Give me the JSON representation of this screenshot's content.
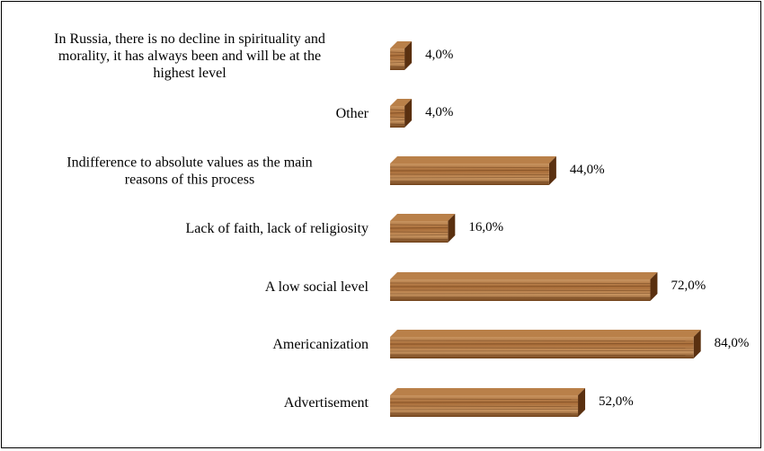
{
  "colors": {
    "bar_light": "#c89460",
    "bar_mid": "#a86c38",
    "bar_dark": "#6e3f18",
    "bar_top": "#b98049",
    "bar_side": "#5a3010",
    "grain": "#4a2608",
    "frame": "#000000",
    "text": "#000000"
  },
  "chart_data": {
    "type": "bar",
    "orientation": "horizontal",
    "style": "3d-wood-texture",
    "xlim": [
      0,
      100
    ],
    "grid": false,
    "legend": "none",
    "categories": [
      [
        "In Russia, there is no decline in spirituality and",
        "morality, it has always been and will be at the",
        "highest level"
      ],
      [
        "Other"
      ],
      [
        "Indifference to absolute values as the main",
        "reasons of this process"
      ],
      [
        "Lack of faith, lack of religiosity"
      ],
      [
        "A low social level"
      ],
      [
        "Americanization"
      ],
      [
        "Advertisement"
      ]
    ],
    "values": [
      4.0,
      4.0,
      44.0,
      16.0,
      72.0,
      84.0,
      52.0
    ],
    "value_labels": [
      "4,0%",
      "4,0%",
      "44,0%",
      "16,0%",
      "72,0%",
      "84,0%",
      "52,0%"
    ]
  }
}
